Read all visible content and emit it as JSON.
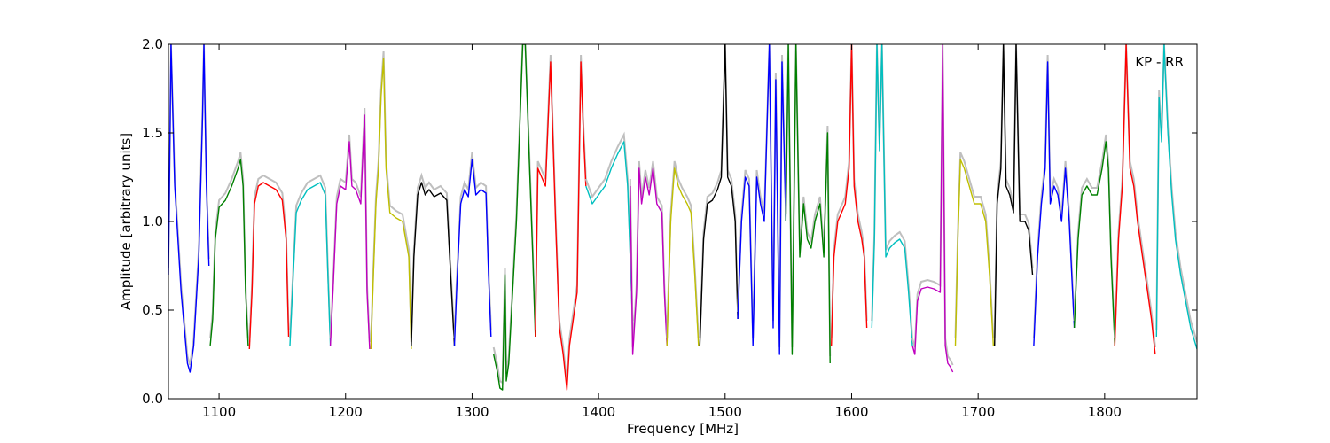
{
  "chart_data": {
    "type": "line",
    "title": "",
    "annotation": "KP - RR",
    "xlabel": "Frequency [MHz]",
    "ylabel": "Amplitude [arbitrary units]",
    "xlim": [
      1060,
      1873
    ],
    "ylim": [
      0.0,
      2.0
    ],
    "xticks": [
      1100,
      1200,
      1300,
      1400,
      1500,
      1600,
      1700,
      1800
    ],
    "xtick_labels": [
      "1100",
      "1200",
      "1300",
      "1400",
      "1500",
      "1600",
      "1700",
      "1800"
    ],
    "yticks": [
      0.0,
      0.5,
      1.0,
      1.5,
      2.0
    ],
    "ytick_labels": [
      "0.0",
      "0.5",
      "1.0",
      "1.5",
      "2.0"
    ],
    "grid": false,
    "legend": "none",
    "background_series_color": "#bfbfbf",
    "series": [
      {
        "color": "#0000ff",
        "x": [
          1060,
          1062,
          1065,
          1070,
          1075,
          1077,
          1080,
          1084,
          1087,
          1088,
          1090,
          1092
        ],
        "y": [
          0.7,
          2.0,
          1.2,
          0.6,
          0.2,
          0.15,
          0.3,
          0.8,
          1.6,
          2.0,
          1.2,
          0.75
        ]
      },
      {
        "color": "#008000",
        "x": [
          1093,
          1095,
          1097,
          1100,
          1105,
          1110,
          1115,
          1117,
          1119,
          1121,
          1123
        ],
        "y": [
          0.3,
          0.45,
          0.9,
          1.08,
          1.12,
          1.2,
          1.3,
          1.35,
          1.2,
          0.6,
          0.3
        ]
      },
      {
        "color": "#ff0000",
        "x": [
          1124,
          1126,
          1128,
          1131,
          1135,
          1140,
          1145,
          1150,
          1153,
          1155
        ],
        "y": [
          0.28,
          0.6,
          1.1,
          1.2,
          1.22,
          1.2,
          1.18,
          1.12,
          0.9,
          0.35
        ]
      },
      {
        "color": "#00bfbf",
        "x": [
          1156,
          1158,
          1161,
          1165,
          1170,
          1175,
          1180,
          1184,
          1186,
          1188
        ],
        "y": [
          0.3,
          0.6,
          1.05,
          1.12,
          1.18,
          1.2,
          1.22,
          1.15,
          0.7,
          0.3
        ]
      },
      {
        "color": "#bf00bf",
        "x": [
          1188,
          1190,
          1193,
          1196,
          1200,
          1203,
          1205,
          1208,
          1212,
          1215,
          1217,
          1219
        ],
        "y": [
          0.3,
          0.6,
          1.1,
          1.2,
          1.18,
          1.45,
          1.2,
          1.18,
          1.1,
          1.6,
          0.6,
          0.28
        ]
      },
      {
        "color": "#bfbf00",
        "x": [
          1220,
          1222,
          1224,
          1226,
          1228,
          1230,
          1232,
          1235,
          1240,
          1245,
          1250,
          1252
        ],
        "y": [
          0.28,
          0.7,
          1.1,
          1.3,
          1.7,
          1.92,
          1.3,
          1.05,
          1.02,
          1.0,
          0.8,
          0.28
        ]
      },
      {
        "color": "#000000",
        "x": [
          1252,
          1254,
          1257,
          1260,
          1263,
          1266,
          1270,
          1275,
          1280,
          1283,
          1286
        ],
        "y": [
          0.3,
          0.8,
          1.15,
          1.22,
          1.15,
          1.18,
          1.14,
          1.16,
          1.12,
          0.7,
          0.3
        ]
      },
      {
        "color": "#0000ff",
        "x": [
          1286,
          1288,
          1291,
          1294,
          1297,
          1300,
          1303,
          1307,
          1311,
          1313,
          1315
        ],
        "y": [
          0.3,
          0.65,
          1.1,
          1.18,
          1.14,
          1.35,
          1.15,
          1.18,
          1.16,
          0.7,
          0.35
        ]
      },
      {
        "color": "#008000",
        "x": [
          1317,
          1320,
          1322,
          1324,
          1326,
          1327,
          1329,
          1332,
          1335,
          1338,
          1340,
          1342,
          1345,
          1348,
          1350
        ],
        "y": [
          0.25,
          0.15,
          0.06,
          0.05,
          0.7,
          0.1,
          0.2,
          0.6,
          1.0,
          1.6,
          2.0,
          2.0,
          1.4,
          0.8,
          0.35
        ]
      },
      {
        "color": "#ff0000",
        "x": [
          1350,
          1352,
          1355,
          1358,
          1362,
          1366,
          1369,
          1372,
          1375,
          1377,
          1380,
          1383,
          1386,
          1388,
          1390
        ],
        "y": [
          0.35,
          1.3,
          1.25,
          1.2,
          1.9,
          1.0,
          0.4,
          0.25,
          0.05,
          0.3,
          0.45,
          0.6,
          1.9,
          1.5,
          1.2
        ]
      },
      {
        "color": "#00bfbf",
        "x": [
          1390,
          1395,
          1400,
          1405,
          1410,
          1415,
          1420,
          1423,
          1425,
          1427
        ],
        "y": [
          1.2,
          1.1,
          1.15,
          1.2,
          1.3,
          1.38,
          1.45,
          1.2,
          0.8,
          0.4
        ]
      },
      {
        "color": "#bf00bf",
        "x": [
          1425,
          1427,
          1430,
          1432,
          1434,
          1437,
          1440,
          1443,
          1446,
          1450,
          1452,
          1454
        ],
        "y": [
          1.2,
          0.25,
          0.6,
          1.3,
          1.1,
          1.25,
          1.15,
          1.3,
          1.1,
          1.05,
          0.6,
          0.3
        ]
      },
      {
        "color": "#bfbf00",
        "x": [
          1454,
          1457,
          1460,
          1463,
          1466,
          1470,
          1473,
          1476,
          1479
        ],
        "y": [
          0.3,
          1.0,
          1.3,
          1.2,
          1.15,
          1.1,
          1.05,
          0.7,
          0.3
        ]
      },
      {
        "color": "#000000",
        "x": [
          1480,
          1483,
          1486,
          1490,
          1494,
          1497,
          1500,
          1502,
          1505,
          1508,
          1510
        ],
        "y": [
          0.3,
          0.9,
          1.1,
          1.12,
          1.18,
          1.25,
          2.0,
          1.25,
          1.2,
          1.0,
          0.45
        ]
      },
      {
        "color": "#0000ff",
        "x": [
          1510,
          1513,
          1516,
          1519,
          1522,
          1525,
          1528,
          1531,
          1535,
          1538,
          1540,
          1543,
          1545,
          1548
        ],
        "y": [
          0.45,
          1.0,
          1.25,
          1.2,
          0.3,
          1.25,
          1.1,
          1.0,
          2.0,
          0.4,
          1.8,
          0.25,
          1.9,
          1.0
        ]
      },
      {
        "color": "#008000",
        "x": [
          1548,
          1550,
          1553,
          1556,
          1559,
          1562,
          1565,
          1568,
          1571,
          1575,
          1578,
          1581,
          1583
        ],
        "y": [
          1.0,
          2.0,
          0.25,
          2.0,
          0.8,
          1.1,
          0.9,
          0.85,
          1.0,
          1.1,
          0.8,
          1.5,
          0.2
        ]
      },
      {
        "color": "#ff0000",
        "x": [
          1584,
          1586,
          1589,
          1592,
          1595,
          1598,
          1600,
          1602,
          1605,
          1608,
          1610,
          1612
        ],
        "y": [
          0.3,
          0.8,
          1.0,
          1.05,
          1.1,
          1.3,
          2.0,
          1.2,
          1.0,
          0.9,
          0.8,
          0.4
        ]
      },
      {
        "color": "#00bfbf",
        "x": [
          1616,
          1618,
          1620,
          1622,
          1624,
          1627,
          1630,
          1634,
          1638,
          1642,
          1645,
          1648
        ],
        "y": [
          0.4,
          0.9,
          2.0,
          1.4,
          2.0,
          0.8,
          0.85,
          0.88,
          0.9,
          0.85,
          0.6,
          0.3
        ]
      },
      {
        "color": "#bf00bf",
        "x": [
          1648,
          1650,
          1652,
          1655,
          1660,
          1665,
          1670,
          1672,
          1674,
          1676,
          1678,
          1680
        ],
        "y": [
          0.3,
          0.25,
          0.55,
          0.62,
          0.63,
          0.62,
          0.6,
          2.0,
          0.3,
          0.2,
          0.18,
          0.15
        ]
      },
      {
        "color": "#bfbf00",
        "x": [
          1682,
          1684,
          1686,
          1689,
          1693,
          1697,
          1702,
          1706,
          1709,
          1712
        ],
        "y": [
          0.3,
          0.9,
          1.35,
          1.3,
          1.2,
          1.1,
          1.1,
          1.0,
          0.7,
          0.3
        ]
      },
      {
        "color": "#000000",
        "x": [
          1713,
          1715,
          1718,
          1720,
          1722,
          1725,
          1728,
          1730,
          1733,
          1737,
          1740,
          1743
        ],
        "y": [
          0.3,
          1.1,
          1.3,
          2.0,
          1.2,
          1.15,
          1.05,
          2.0,
          1.0,
          1.0,
          0.95,
          0.7
        ]
      },
      {
        "color": "#0000ff",
        "x": [
          1744,
          1747,
          1750,
          1753,
          1755,
          1757,
          1760,
          1763,
          1766,
          1769,
          1772,
          1776
        ],
        "y": [
          0.3,
          0.8,
          1.1,
          1.3,
          1.9,
          1.1,
          1.2,
          1.15,
          1.0,
          1.3,
          1.0,
          0.4
        ]
      },
      {
        "color": "#008000",
        "x": [
          1776,
          1779,
          1782,
          1786,
          1790,
          1794,
          1798,
          1801,
          1803,
          1805,
          1808
        ],
        "y": [
          0.4,
          0.9,
          1.15,
          1.2,
          1.15,
          1.15,
          1.3,
          1.45,
          1.3,
          0.8,
          0.3
        ]
      },
      {
        "color": "#ff0000",
        "x": [
          1808,
          1811,
          1814,
          1817,
          1820,
          1823,
          1826,
          1830,
          1834,
          1837,
          1840
        ],
        "y": [
          0.3,
          0.9,
          1.2,
          2.0,
          1.3,
          1.2,
          1.0,
          0.8,
          0.6,
          0.45,
          0.25
        ]
      },
      {
        "color": "#00bfbf",
        "x": [
          1841,
          1843,
          1845,
          1847,
          1850,
          1853,
          1856,
          1860,
          1864,
          1868,
          1873
        ],
        "y": [
          0.35,
          1.7,
          1.45,
          2.0,
          1.5,
          1.15,
          0.9,
          0.7,
          0.55,
          0.4,
          0.28
        ]
      }
    ]
  }
}
